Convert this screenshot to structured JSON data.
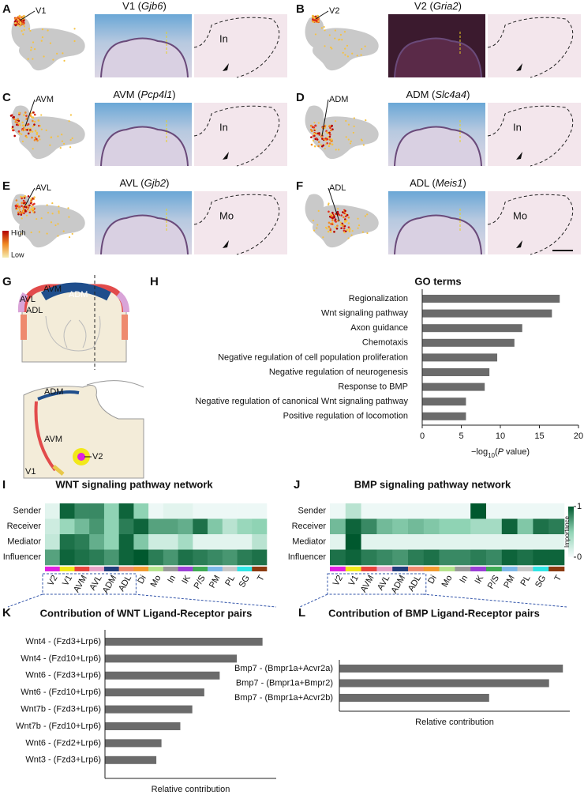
{
  "panels": [
    {
      "letter": "A",
      "umap_label": "V1",
      "title_parts": [
        "V1 (",
        "Gjb6",
        ")"
      ],
      "region": "In"
    },
    {
      "letter": "B",
      "umap_label": "V2",
      "title_parts": [
        "V2 (",
        "Gria2",
        ")"
      ]
    },
    {
      "letter": "C",
      "umap_label": "AVM",
      "title_parts": [
        "AVM (",
        "Pcp4l1",
        ")"
      ],
      "region": "In"
    },
    {
      "letter": "D",
      "umap_label": "ADM",
      "title_parts": [
        "ADM (",
        "Slc4a4",
        ")"
      ],
      "region": "In"
    },
    {
      "letter": "E",
      "umap_label": "AVL",
      "title_parts": [
        "AVL (",
        "Gjb2",
        ")"
      ],
      "region": "Mo"
    },
    {
      "letter": "F",
      "umap_label": "ADL",
      "title_parts": [
        "ADL (",
        "Meis1",
        ")"
      ],
      "region": "Mo"
    }
  ],
  "umap_legend": [
    "High",
    "Low"
  ],
  "diagram": {
    "letter": "G",
    "labels": [
      "AVM",
      "ADM",
      "AVL",
      "ADL",
      "ADM",
      "AVM",
      "V1",
      "V2"
    ]
  },
  "chart_data": [
    {
      "letter": "H",
      "type": "hbar",
      "title": "GO terms",
      "categories": [
        "Regionalization",
        "Wnt signaling pathway",
        "Axon guidance",
        "Chemotaxis",
        "Negative regulation of cell population proliferation",
        "Negative regulation of neurogenesis",
        "Response to BMP",
        "Negative regulation of canonical Wnt signaling pathway",
        "Positive regulation of locomotion"
      ],
      "values": [
        17.6,
        16.6,
        12.8,
        11.8,
        9.6,
        8.6,
        8.0,
        5.6,
        5.6
      ],
      "color": "#6b6b6b",
      "xlim": [
        0,
        20
      ],
      "xticks": [
        0,
        5,
        10,
        15,
        20
      ],
      "xlabel_parts": [
        "−log",
        "10",
        "(",
        "P",
        " value)"
      ]
    },
    {
      "letter": "I",
      "type": "heatmap",
      "title": "WNT signaling pathway network",
      "rows": [
        "Sender",
        "Receiver",
        "Mediator",
        "Influencer"
      ],
      "columns": [
        "V2",
        "V1",
        "AVM",
        "AVL",
        "ADM",
        "ADL",
        "Di",
        "Mo",
        "In",
        "IK",
        "P/S",
        "PM",
        "PL",
        "SG",
        "T"
      ],
      "values": [
        [
          0.1,
          0.95,
          0.8,
          0.8,
          0.5,
          0.95,
          0.5,
          0.05,
          0.1,
          0.1,
          0.05,
          0.05,
          0.05,
          0.05,
          0.05
        ],
        [
          0.2,
          0.45,
          0.6,
          0.75,
          0.5,
          0.85,
          0.95,
          0.7,
          0.7,
          0.65,
          0.9,
          0.55,
          0.3,
          0.45,
          0.5
        ],
        [
          0.25,
          0.9,
          0.85,
          0.65,
          0.5,
          0.95,
          0.55,
          0.2,
          0.2,
          0.4,
          0.1,
          0.1,
          0.1,
          0.1,
          0.3
        ],
        [
          0.7,
          0.95,
          0.9,
          0.85,
          0.75,
          0.95,
          1.0,
          0.85,
          0.75,
          0.9,
          0.85,
          0.8,
          0.75,
          0.85,
          0.9
        ]
      ],
      "column_colors": [
        "#e020e0",
        "#f2e81a",
        "#e8433c",
        "#e7a3c7",
        "#213d7a",
        "#ee8a6e",
        "#f29a2e",
        "#b4e38c",
        "#9a9a9a",
        "#9b3fd6",
        "#3faa55",
        "#7cb8e8",
        "#c8c8c8",
        "#2ee6e6",
        "#8b3a10"
      ],
      "colormap": [
        "#f7fcfd",
        "#8fd3b4",
        "#00582e"
      ],
      "zlim": [
        0,
        1
      ]
    },
    {
      "letter": "J",
      "type": "heatmap",
      "title": "BMP signaling pathway network",
      "rows": [
        "Sender",
        "Receiver",
        "Mediator",
        "Influencer"
      ],
      "columns": [
        "V2",
        "V1",
        "AVM",
        "AVL",
        "ADM",
        "ADL",
        "Di",
        "Mo",
        "In",
        "IK",
        "P/S",
        "PM",
        "PL",
        "SG",
        "T"
      ],
      "values": [
        [
          0.05,
          0.3,
          0.05,
          0.05,
          0.05,
          0.05,
          0.05,
          0.05,
          0.05,
          1.0,
          0.05,
          0.05,
          0.05,
          0.05,
          0.05
        ],
        [
          0.6,
          0.95,
          0.8,
          0.6,
          0.55,
          0.6,
          0.55,
          0.5,
          0.5,
          0.4,
          0.4,
          0.95,
          0.55,
          0.9,
          0.85
        ],
        [
          0.1,
          1.0,
          0.1,
          0.1,
          0.1,
          0.1,
          0.1,
          0.1,
          0.1,
          0.1,
          0.1,
          0.1,
          0.1,
          0.1,
          0.1
        ],
        [
          0.9,
          0.95,
          0.85,
          0.8,
          0.75,
          0.85,
          0.9,
          0.8,
          0.8,
          0.85,
          0.8,
          0.95,
          0.9,
          0.95,
          0.95
        ]
      ],
      "column_colors": [
        "#e020e0",
        "#f2e81a",
        "#e8433c",
        "#e7a3c7",
        "#213d7a",
        "#ee8a6e",
        "#f29a2e",
        "#b4e38c",
        "#9a9a9a",
        "#9b3fd6",
        "#3faa55",
        "#7cb8e8",
        "#c8c8c8",
        "#2ee6e6",
        "#8b3a10"
      ],
      "colormap": [
        "#f7fcfd",
        "#8fd3b4",
        "#00582e"
      ],
      "zlim": [
        0,
        1
      ],
      "colorbar": {
        "label": "Importance",
        "ticks": [
          0,
          1
        ]
      }
    },
    {
      "letter": "K",
      "type": "hbar",
      "title": "Contribution of WNT Ligand-Receptor pairs",
      "categories": [
        "Wnt4 - (Fzd3+Lrp6)",
        "Wnt4 - (Fzd10+Lrp6)",
        "Wnt6 - (Fzd3+Lrp6)",
        "Wnt6 - (Fzd10+Lrp6)",
        "Wnt7b - (Fzd3+Lrp6)",
        "Wnt7b - (Fzd10+Lrp6)",
        "Wnt6 - (Fzd2+Lrp6)",
        "Wnt3 - (Fzd3+Lrp6)"
      ],
      "values": [
        0.92,
        0.77,
        0.67,
        0.58,
        0.51,
        0.44,
        0.33,
        0.3
      ],
      "color": "#6b6b6b",
      "xlim": [
        0,
        1
      ],
      "xlabel": "Relative contribution"
    },
    {
      "letter": "L",
      "type": "hbar",
      "title": "Contribution of BMP Ligand-Receptor pairs",
      "categories": [
        "Bmp7 - (Bmpr1a+Acvr2a)",
        "Bmp7 - (Bmpr1a+Bmpr2)",
        "Bmp7 - (Bmpr1a+Acvr2b)"
      ],
      "values": [
        0.97,
        0.91,
        0.65
      ],
      "color": "#6b6b6b",
      "xlim": [
        0,
        1
      ],
      "xlabel": "Relative contribution"
    }
  ]
}
